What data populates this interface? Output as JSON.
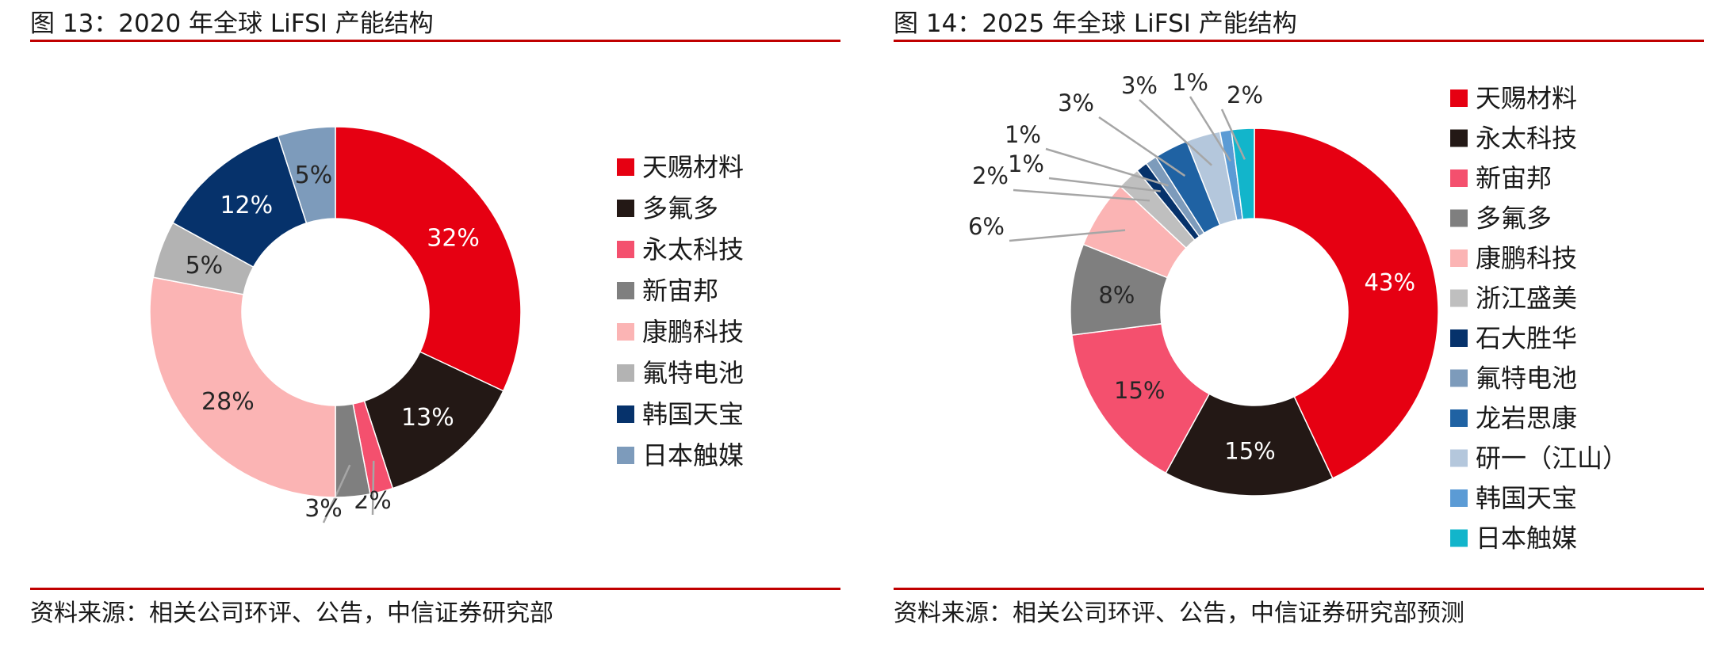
{
  "left": {
    "title": "图 13：2020 年全球 LiFSI 产能结构",
    "source": "资料来源：相关公司环评、公告，中信证券研究部"
  },
  "right": {
    "title": "图 14：2025 年全球 LiFSI 产能结构",
    "source": "资料来源：相关公司环评、公告，中信证券研究部预测"
  },
  "chart_data": [
    {
      "type": "pie",
      "donut": true,
      "title": "图 13：2020 年全球 LiFSI 产能结构",
      "legend_position": "right",
      "categories": [
        "天赐材料",
        "多氟多",
        "永太科技",
        "新宙邦",
        "康鹏科技",
        "氟特电池",
        "韩国天宝",
        "日本触媒"
      ],
      "values": [
        32,
        13,
        2,
        3,
        28,
        5,
        12,
        5
      ],
      "labels": [
        "32%",
        "13%",
        "2%",
        "3%",
        "28%",
        "5%",
        "12%",
        "5%"
      ],
      "colors": [
        "#e60012",
        "#231815",
        "#f4506e",
        "#7f7f7f",
        "#fbb4b4",
        "#b3b3b3",
        "#06326b",
        "#7d9bbb"
      ]
    },
    {
      "type": "pie",
      "donut": true,
      "title": "图 14：2025 年全球 LiFSI 产能结构",
      "legend_position": "right",
      "categories": [
        "天赐材料",
        "永太科技",
        "新宙邦",
        "多氟多",
        "康鹏科技",
        "浙江盛美",
        "石大胜华",
        "氟特电池",
        "龙岩思康",
        "研一（江山）",
        "韩国天宝",
        "日本触媒"
      ],
      "values": [
        43,
        15,
        15,
        8,
        6,
        2,
        1,
        1,
        3,
        3,
        1,
        2
      ],
      "labels": [
        "43%",
        "15%",
        "15%",
        "8%",
        "6%",
        "2%",
        "1%",
        "1%",
        "3%",
        "3%",
        "1%",
        "2%"
      ],
      "colors": [
        "#e60012",
        "#231815",
        "#f4506e",
        "#7f7f7f",
        "#fbb4b4",
        "#bfbfbf",
        "#06326b",
        "#7d9bbb",
        "#1f62a3",
        "#b4c7dc",
        "#5b9bd5",
        "#12b5cb"
      ]
    }
  ]
}
